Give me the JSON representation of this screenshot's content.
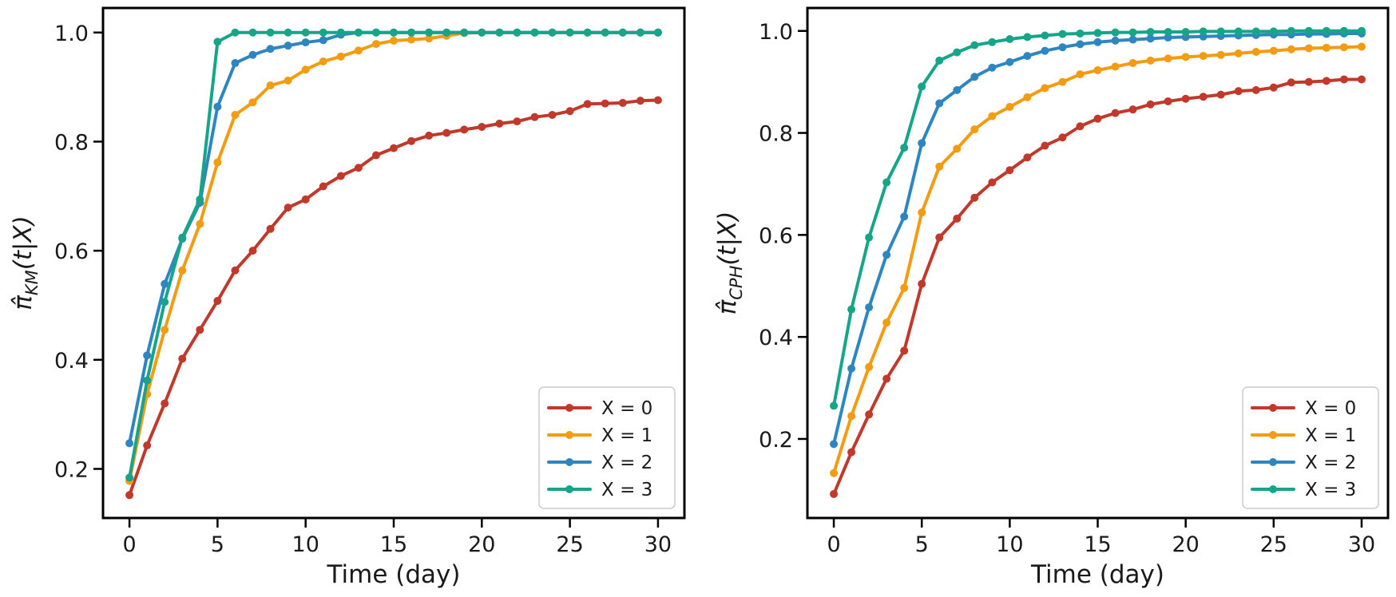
{
  "chart_data": [
    {
      "type": "line",
      "xlabel": "Time (day)",
      "ylabel": "π̂KM(t|X)",
      "ylabel_parts": {
        "main": "π̂",
        "sub": "KM",
        "rest": "(t|X)"
      },
      "xlim": [
        -1.5,
        31.5
      ],
      "ylim": [
        0.11,
        1.045
      ],
      "xticks": [
        0,
        5,
        10,
        15,
        20,
        25,
        30
      ],
      "xtick_labels": [
        "0",
        "5",
        "10",
        "15",
        "20",
        "25",
        "30"
      ],
      "yticks": [
        0.2,
        0.4,
        0.6,
        0.8,
        1.0
      ],
      "ytick_labels": [
        "0.2",
        "0.4",
        "0.6",
        "0.8",
        "1.0"
      ],
      "legend_position": "lower-right",
      "x": [
        0,
        1,
        2,
        3,
        4,
        5,
        6,
        7,
        8,
        9,
        10,
        11,
        12,
        13,
        14,
        15,
        16,
        17,
        18,
        19,
        20,
        21,
        22,
        23,
        24,
        25,
        26,
        27,
        28,
        29,
        30
      ],
      "series": [
        {
          "name": "X = 0",
          "color": "#c0392b",
          "values": [
            0.152,
            0.243,
            0.32,
            0.402,
            0.455,
            0.508,
            0.564,
            0.6,
            0.64,
            0.679,
            0.694,
            0.718,
            0.737,
            0.752,
            0.775,
            0.788,
            0.801,
            0.811,
            0.816,
            0.822,
            0.827,
            0.833,
            0.837,
            0.845,
            0.849,
            0.856,
            0.869,
            0.87,
            0.871,
            0.875,
            0.876
          ]
        },
        {
          "name": "X = 1",
          "color": "#f39c12",
          "values": [
            0.178,
            0.337,
            0.455,
            0.564,
            0.649,
            0.762,
            0.849,
            0.872,
            0.903,
            0.912,
            0.932,
            0.947,
            0.956,
            0.967,
            0.979,
            0.985,
            0.987,
            0.989,
            0.994,
            0.999,
            1.0,
            1.0,
            1.0,
            1.0,
            1.0,
            1.0,
            1.0,
            1.0,
            1.0,
            1.0,
            1.0
          ]
        },
        {
          "name": "X = 2",
          "color": "#2e86c1",
          "values": [
            0.247,
            0.408,
            0.539,
            0.622,
            0.688,
            0.864,
            0.944,
            0.959,
            0.97,
            0.976,
            0.982,
            0.986,
            0.996,
            1.0,
            1.0,
            1.0,
            1.0,
            1.0,
            1.0,
            1.0,
            1.0,
            1.0,
            1.0,
            1.0,
            1.0,
            1.0,
            1.0,
            1.0,
            1.0,
            1.0,
            1.0
          ]
        },
        {
          "name": "X = 3",
          "color": "#17a589",
          "values": [
            0.184,
            0.362,
            0.506,
            0.624,
            0.694,
            0.983,
            1.0,
            1.0,
            1.0,
            1.0,
            1.0,
            1.0,
            1.0,
            1.0,
            1.0,
            1.0,
            1.0,
            1.0,
            1.0,
            1.0,
            1.0,
            1.0,
            1.0,
            1.0,
            1.0,
            1.0,
            1.0,
            1.0,
            1.0,
            1.0,
            1.0
          ]
        }
      ]
    },
    {
      "type": "line",
      "xlabel": "Time (day)",
      "ylabel": "π̂CPH(t|X)",
      "ylabel_parts": {
        "main": "π̂",
        "sub": "CPH",
        "rest": "(t|X)"
      },
      "xlim": [
        -1.5,
        31.5
      ],
      "ylim": [
        0.045,
        1.045
      ],
      "xticks": [
        0,
        5,
        10,
        15,
        20,
        25,
        30
      ],
      "xtick_labels": [
        "0",
        "5",
        "10",
        "15",
        "20",
        "25",
        "30"
      ],
      "yticks": [
        0.2,
        0.4,
        0.6,
        0.8,
        1.0
      ],
      "ytick_labels": [
        "0.2",
        "0.4",
        "0.6",
        "0.8",
        "1.0"
      ],
      "legend_position": "lower-right",
      "x": [
        0,
        1,
        2,
        3,
        4,
        5,
        6,
        7,
        8,
        9,
        10,
        11,
        12,
        13,
        14,
        15,
        16,
        17,
        18,
        19,
        20,
        21,
        22,
        23,
        24,
        25,
        26,
        27,
        28,
        29,
        30
      ],
      "series": [
        {
          "name": "X = 0",
          "color": "#c0392b",
          "values": [
            0.092,
            0.174,
            0.248,
            0.318,
            0.373,
            0.504,
            0.595,
            0.632,
            0.673,
            0.703,
            0.727,
            0.752,
            0.775,
            0.791,
            0.813,
            0.828,
            0.839,
            0.846,
            0.856,
            0.862,
            0.867,
            0.871,
            0.875,
            0.882,
            0.884,
            0.889,
            0.899,
            0.9,
            0.902,
            0.905,
            0.905
          ]
        },
        {
          "name": "X = 1",
          "color": "#f39c12",
          "values": [
            0.133,
            0.245,
            0.341,
            0.428,
            0.496,
            0.644,
            0.734,
            0.769,
            0.807,
            0.833,
            0.851,
            0.87,
            0.888,
            0.9,
            0.915,
            0.923,
            0.93,
            0.937,
            0.942,
            0.946,
            0.949,
            0.951,
            0.953,
            0.956,
            0.959,
            0.961,
            0.964,
            0.966,
            0.967,
            0.968,
            0.969
          ]
        },
        {
          "name": "X = 2",
          "color": "#2e86c1",
          "values": [
            0.19,
            0.338,
            0.458,
            0.561,
            0.636,
            0.78,
            0.858,
            0.884,
            0.91,
            0.928,
            0.939,
            0.951,
            0.961,
            0.968,
            0.974,
            0.978,
            0.981,
            0.983,
            0.985,
            0.987,
            0.988,
            0.989,
            0.99,
            0.991,
            0.992,
            0.993,
            0.993,
            0.994,
            0.994,
            0.995,
            0.995
          ]
        },
        {
          "name": "X = 3",
          "color": "#17a589",
          "values": [
            0.265,
            0.454,
            0.595,
            0.703,
            0.771,
            0.891,
            0.942,
            0.958,
            0.972,
            0.978,
            0.984,
            0.988,
            0.991,
            0.994,
            0.995,
            0.996,
            0.997,
            0.997,
            0.998,
            0.998,
            0.998,
            0.999,
            0.999,
            0.999,
            0.999,
            0.999,
            1.0,
            1.0,
            1.0,
            1.0,
            1.0
          ]
        }
      ]
    }
  ]
}
